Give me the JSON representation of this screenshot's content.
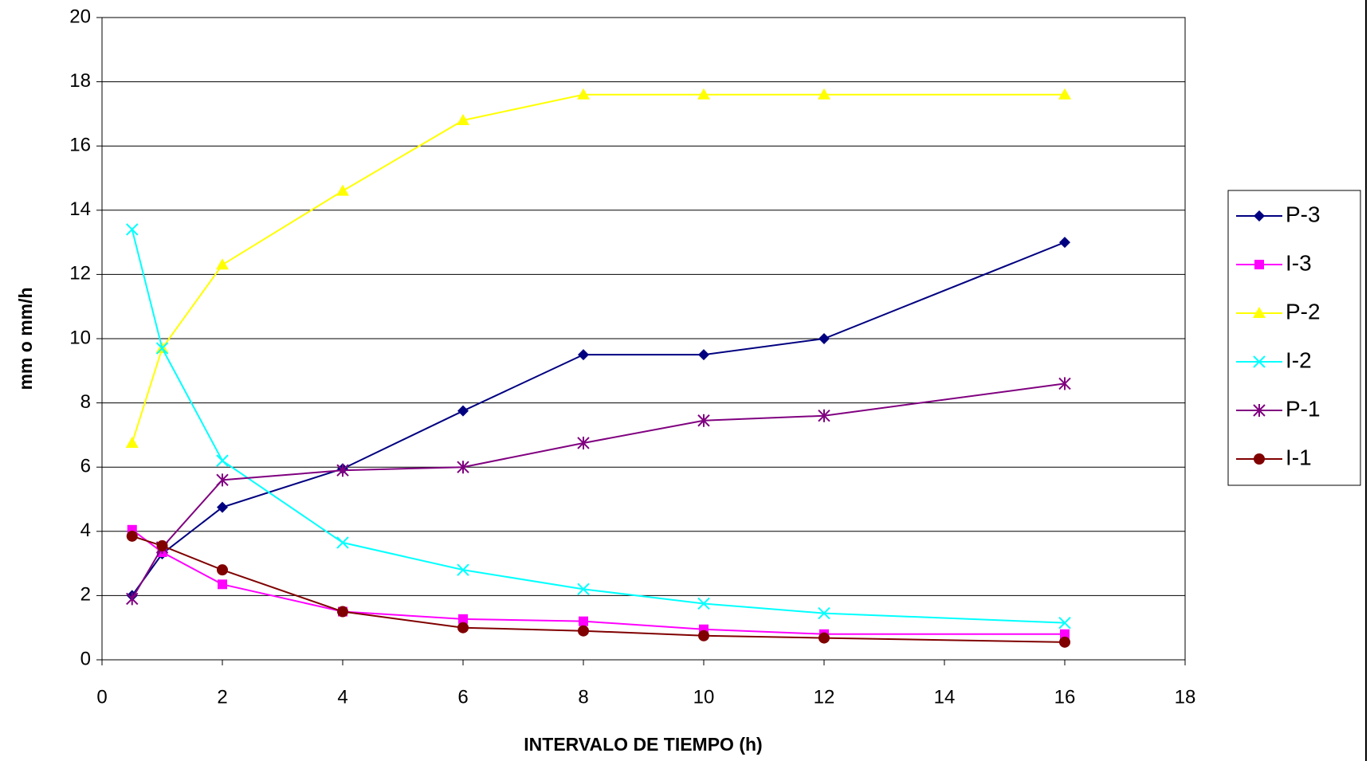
{
  "chart_data": {
    "type": "line",
    "x_label": "INTERVALO DE TIEMPO (h)",
    "y_label": "mm  o  mm/h",
    "x": [
      0.5,
      1,
      2,
      4,
      6,
      8,
      10,
      12,
      16
    ],
    "xlim": [
      0,
      18
    ],
    "xticks": [
      0,
      2,
      4,
      6,
      8,
      10,
      12,
      14,
      16,
      18
    ],
    "ylim": [
      0,
      20
    ],
    "yticks": [
      0,
      2,
      4,
      6,
      8,
      10,
      12,
      14,
      16,
      18,
      20
    ],
    "grid": true,
    "legend": "right",
    "series": [
      {
        "name": "P-3",
        "color": "#000080",
        "marker": "diamond",
        "values": [
          2,
          3.3,
          4.75,
          5.95,
          7.75,
          9.5,
          9.5,
          10,
          13
        ]
      },
      {
        "name": "I-3",
        "color": "#ff00ff",
        "marker": "square",
        "values": [
          4.05,
          3.35,
          2.35,
          1.5,
          1.27,
          1.2,
          0.95,
          0.8,
          0.8
        ]
      },
      {
        "name": "P-2",
        "color": "#ffff00",
        "marker": "triangle",
        "values": [
          6.75,
          9.7,
          12.3,
          14.6,
          16.8,
          17.6,
          17.6,
          17.6,
          17.6
        ]
      },
      {
        "name": "I-2",
        "color": "#00ffff",
        "marker": "x",
        "values": [
          13.4,
          9.7,
          6.2,
          3.65,
          2.8,
          2.2,
          1.75,
          1.45,
          1.15
        ]
      },
      {
        "name": "P-1",
        "color": "#800080",
        "marker": "star",
        "values": [
          1.9,
          3.5,
          5.6,
          5.9,
          6.0,
          6.75,
          7.45,
          7.6,
          8.6
        ]
      },
      {
        "name": "I-1",
        "color": "#800000",
        "marker": "circle",
        "values": [
          3.85,
          3.55,
          2.8,
          1.5,
          1.0,
          0.9,
          0.75,
          0.68,
          0.55
        ]
      }
    ]
  }
}
